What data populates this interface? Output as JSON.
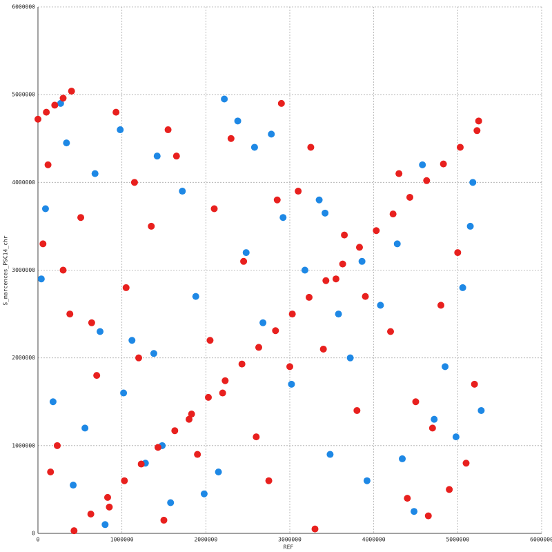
{
  "chart_data": {
    "type": "scatter",
    "x_label": "REF",
    "y_label": "S_marcences_PSC14_chr",
    "xlim": [
      0,
      6000000
    ],
    "ylim": [
      0,
      6000000
    ],
    "xticks": [
      0,
      1000000,
      2000000,
      3000000,
      4000000,
      5000000,
      6000000
    ],
    "yticks": [
      0,
      1000000,
      2000000,
      3000000,
      4000000,
      5000000,
      6000000
    ],
    "grid": true,
    "series": [
      {
        "color": "#1e88e5",
        "x": [
          40000,
          980000,
          2150000,
          3350000,
          4850000,
          560000,
          1420000,
          2680000,
          3920000,
          5150000,
          270000,
          1280000,
          2480000,
          4080000,
          5280000,
          800000,
          1720000,
          3020000,
          4580000,
          5060000,
          180000,
          1120000,
          2380000,
          3480000,
          4280000,
          680000,
          1580000,
          2920000,
          3720000,
          4980000,
          420000,
          1880000,
          2580000,
          3180000,
          4480000,
          90000,
          1020000,
          2220000,
          3580000,
          5180000,
          740000,
          1480000,
          2780000,
          3860000,
          4720000,
          340000,
          1380000,
          1980000,
          3420000,
          4340000
        ],
        "y": [
          2900000,
          4600000,
          700000,
          3800000,
          1900000,
          1200000,
          4300000,
          2400000,
          600000,
          3500000,
          4900000,
          800000,
          3200000,
          2600000,
          1400000,
          100000,
          3900000,
          1700000,
          4200000,
          2800000,
          1500000,
          2200000,
          4700000,
          900000,
          3300000,
          4100000,
          350000,
          3600000,
          2000000,
          1100000,
          550000,
          2700000,
          4400000,
          3000000,
          250000,
          3700000,
          1600000,
          4950000,
          2500000,
          4000000,
          2300000,
          1000000,
          4550000,
          3100000,
          1300000,
          4450000,
          2050000,
          450000,
          3650000,
          850000
        ]
      },
      {
        "color": "#e8201e",
        "x": [
          120000,
          850000,
          2300000,
          3400000,
          4700000,
          510000,
          1500000,
          2900000,
          3900000,
          5100000,
          60000,
          1200000,
          2600000,
          4300000,
          4900000,
          380000,
          1900000,
          3100000,
          4500000,
          5250000,
          700000,
          1650000,
          2750000,
          3650000,
          4200000,
          230000,
          1050000,
          2100000,
          3300000,
          4800000,
          930000,
          1800000,
          2450000,
          3550000,
          4650000,
          150000,
          1350000,
          2200000,
          3000000,
          5000000,
          640000,
          1550000,
          2850000,
          3800000,
          4400000,
          300000,
          1150000,
          2050000,
          3250000,
          5200000
        ],
        "y": [
          4200000,
          300000,
          4500000,
          2100000,
          1200000,
          3600000,
          150000,
          4900000,
          2700000,
          800000,
          3300000,
          2000000,
          1100000,
          4100000,
          500000,
          2500000,
          900000,
          3900000,
          1500000,
          4700000,
          1800000,
          4300000,
          600000,
          3400000,
          2300000,
          1000000,
          2800000,
          3700000,
          50000,
          2600000,
          4800000,
          1300000,
          3100000,
          2900000,
          200000,
          700000,
          3500000,
          1600000,
          1900000,
          3200000,
          2400000,
          4600000,
          3800000,
          1400000,
          400000,
          3000000,
          4000000,
          2200000,
          4400000,
          1700000
        ]
      },
      {
        "color": "#e8201e",
        "x": [
          0,
          100000,
          200000,
          300000,
          400000,
          430000,
          630000,
          830000,
          1030000,
          1230000,
          1430000,
          1630000,
          1830000,
          2030000,
          2230000,
          2430000,
          2630000,
          2830000,
          3030000,
          3230000,
          3430000,
          3630000,
          3830000,
          4030000,
          4230000,
          4430000,
          4630000,
          4830000,
          5030000,
          5230000
        ],
        "y": [
          4720000,
          4800000,
          4880000,
          4960000,
          5040000,
          30000,
          220000,
          410000,
          600000,
          790000,
          980000,
          1170000,
          1360000,
          1550000,
          1740000,
          1930000,
          2120000,
          2310000,
          2500000,
          2690000,
          2880000,
          3070000,
          3260000,
          3450000,
          3640000,
          3830000,
          4020000,
          4210000,
          4400000,
          4590000
        ]
      }
    ]
  }
}
